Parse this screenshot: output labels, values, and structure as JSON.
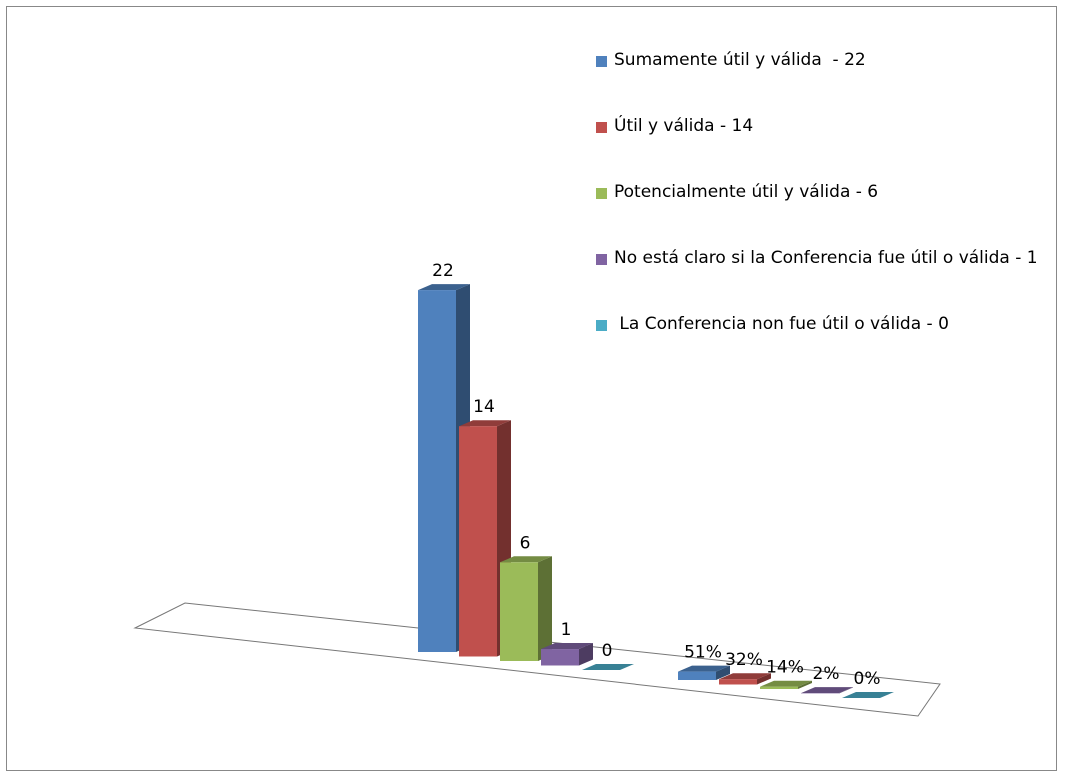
{
  "chart_data": {
    "type": "bar3d",
    "categories": [
      null,
      null
    ],
    "series": [
      {
        "name": "Sumamente útil y válida  - 22",
        "color": "#4f81bd",
        "values": [
          22,
          0.51
        ],
        "value_labels": [
          "22",
          "51%"
        ]
      },
      {
        "name": "Útil y válida - 14",
        "color": "#c0504d",
        "values": [
          14,
          0.32
        ],
        "value_labels": [
          "14",
          "32%"
        ]
      },
      {
        "name": "Potencialmente útil y válida - 6",
        "color": "#9bbb59",
        "values": [
          6,
          0.14
        ],
        "value_labels": [
          "6",
          "14%"
        ]
      },
      {
        "name": "No está claro si la Conferencia fue útil o válida - 1",
        "color": "#8064a2",
        "values": [
          1,
          0.02
        ],
        "value_labels": [
          "1",
          "2%"
        ]
      },
      {
        "name": " La Conferencia non fue útil o válida - 0",
        "color": "#4bacc6",
        "values": [
          0,
          0
        ],
        "value_labels": [
          "0",
          "0%"
        ]
      }
    ],
    "legend": "right"
  }
}
